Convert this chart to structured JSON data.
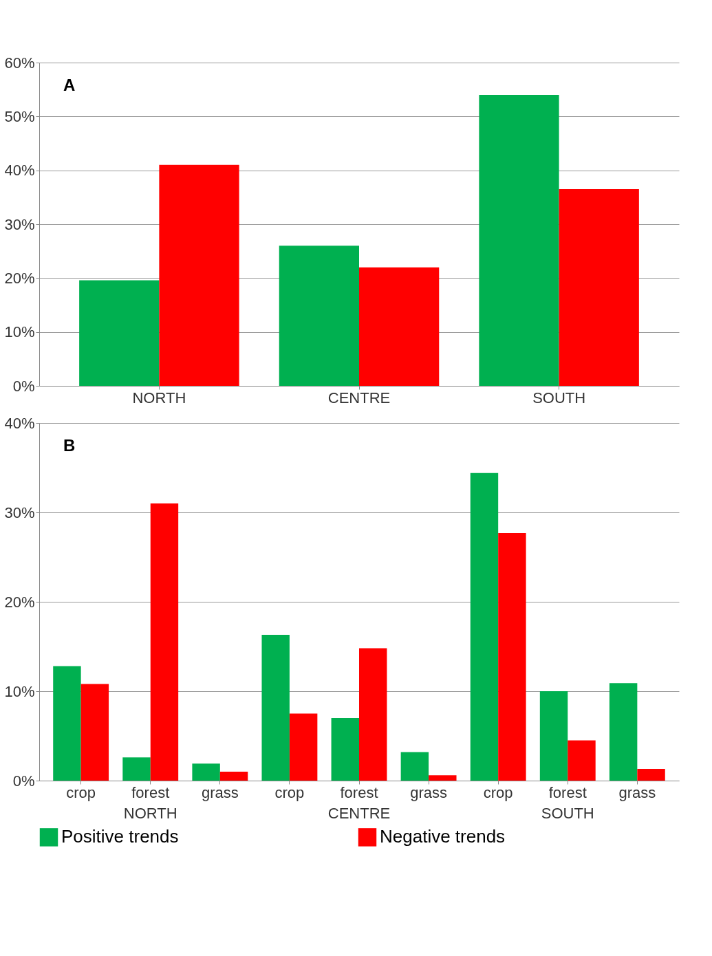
{
  "chart_data": [
    {
      "type": "bar",
      "categories": [
        "NORTH",
        "CENTRE",
        "SOUTH"
      ],
      "annotations": [
        "A"
      ],
      "series": [
        {
          "color": "#00b050",
          "values": [
            19.6,
            26,
            54
          ]
        },
        {
          "color": "#ff0000",
          "values": [
            41,
            22,
            36.5
          ]
        }
      ],
      "ylim": [
        0,
        60
      ],
      "yticks": [
        {
          "value": 0,
          "label": "0%"
        },
        {
          "value": 10,
          "label": "10%"
        },
        {
          "value": 20,
          "label": "20%"
        },
        {
          "value": 30,
          "label": "30%"
        },
        {
          "value": 40,
          "label": "40%"
        },
        {
          "value": 50,
          "label": "50%"
        },
        {
          "value": 60,
          "label": "60%"
        }
      ],
      "grid": "y",
      "legend": false
    },
    {
      "type": "bar",
      "categories": [
        "crop",
        "forest\nNORTH",
        "grass",
        "crop",
        "forest\nCENTRE",
        "grass",
        "crop",
        "forest\nSOUTH",
        "grass"
      ],
      "annotations": [
        "B"
      ],
      "series": [
        {
          "name": "Positive trends",
          "color": "#00b050",
          "values": [
            12.8,
            2.6,
            1.9,
            16.3,
            7.0,
            3.2,
            34.4,
            10.0,
            10.9
          ]
        },
        {
          "name": "Negative trends",
          "color": "#ff0000",
          "values": [
            10.8,
            31.0,
            1.0,
            7.5,
            14.8,
            0.6,
            27.7,
            4.5,
            1.3
          ]
        }
      ],
      "ylim": [
        0,
        40
      ],
      "yticks": [
        {
          "value": 0,
          "label": "0%"
        },
        {
          "value": 10,
          "label": "10%"
        },
        {
          "value": 20,
          "label": "20%"
        },
        {
          "value": 30,
          "label": "30%"
        },
        {
          "value": 40,
          "label": "40%"
        }
      ],
      "grid": "y",
      "legend": "bottom"
    }
  ]
}
